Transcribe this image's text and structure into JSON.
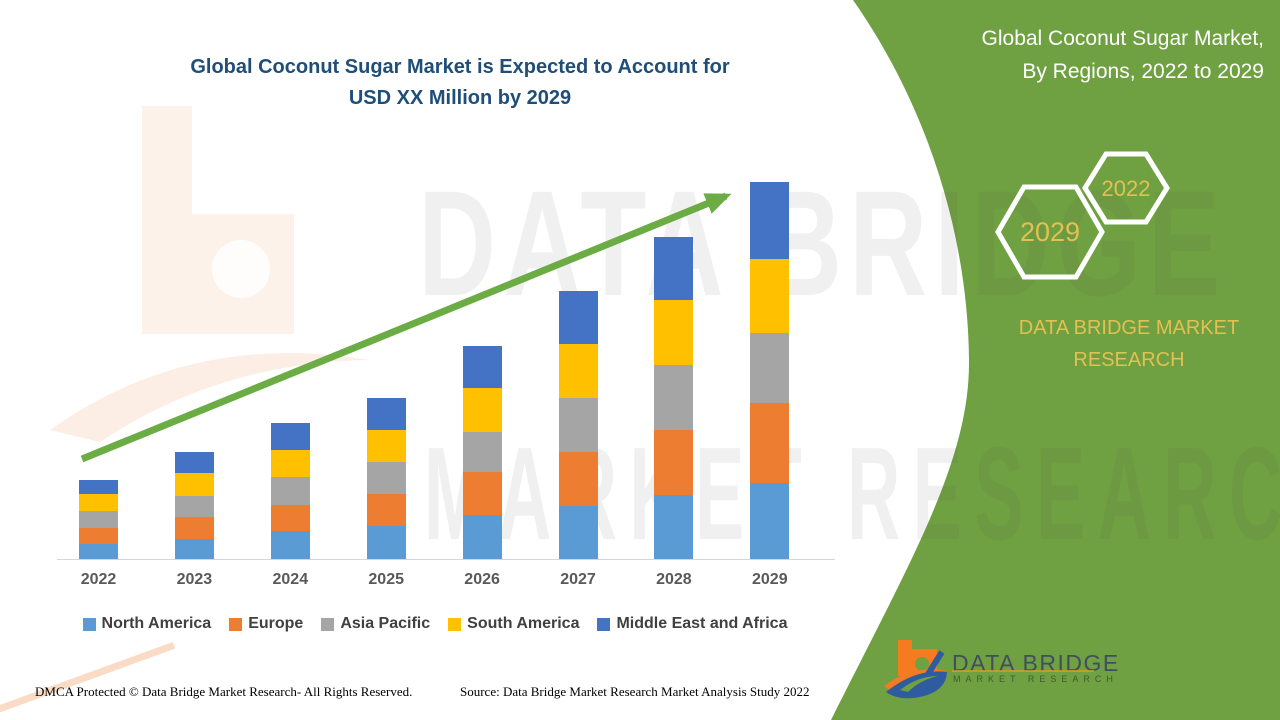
{
  "left": {
    "title_line1": "Global Coconut Sugar Market is Expected to Account for",
    "title_line2": "USD XX Million by 2029",
    "title_color": "#1F4E79",
    "footer_left": "DMCA Protected © Data Bridge Market Research- All Rights Reserved.",
    "footer_right": "Source: Data Bridge Market Research Market Analysis Study 2022"
  },
  "right_panel": {
    "background_color": "#6FA041",
    "header_line1": "Global Coconut Sugar Market,",
    "header_line2": "By Regions, 2022 to 2029",
    "hexagon_large_year": "2029",
    "hexagon_small_year": "2022",
    "hexagon_text_color": "#E3C052",
    "brand_text": "DATA BRIDGE MARKET RESEARCH",
    "brand_text_color": "#E3C052",
    "logo": {
      "name_text": "DATA BRIDGE",
      "sub_text": "MARKET RESEARCH"
    }
  },
  "watermarks": {
    "line1": "DATA BRIDGE",
    "line2": "MARKET RESEARCH"
  },
  "chart_data": {
    "type": "bar",
    "stacked": true,
    "title": "Global Coconut Sugar Market is Expected to Account for USD XX Million by 2029",
    "xlabel": "",
    "ylabel": "",
    "y_axis_visible": false,
    "grid": false,
    "legend_position": "bottom",
    "units": "relative height (values masked as USD XX Million in source)",
    "ylim": [
      0,
      380
    ],
    "categories": [
      "2022",
      "2023",
      "2024",
      "2025",
      "2026",
      "2027",
      "2028",
      "2029"
    ],
    "series": [
      {
        "name": "North America",
        "color": "#5B9BD5",
        "values": [
          15,
          20,
          28,
          33,
          44,
          53,
          64,
          76
        ]
      },
      {
        "name": "Europe",
        "color": "#ED7D31",
        "values": [
          16,
          22,
          26,
          32,
          43,
          54,
          65,
          80
        ]
      },
      {
        "name": "Asia Pacific",
        "color": "#A5A5A5",
        "values": [
          17,
          21,
          28,
          32,
          40,
          54,
          65,
          70
        ]
      },
      {
        "name": "South America",
        "color": "#FFC000",
        "values": [
          17,
          23,
          27,
          32,
          44,
          54,
          65,
          74
        ]
      },
      {
        "name": "Middle East and Africa",
        "color": "#4472C4",
        "values": [
          14,
          21,
          27,
          32,
          42,
          53,
          63,
          77
        ]
      }
    ],
    "totals": [
      79,
      107,
      136,
      161,
      213,
      268,
      322,
      377
    ],
    "trend_arrow": {
      "present": true,
      "color": "#6BAC44",
      "from_xy": [
        82,
        459
      ],
      "to_xy": [
        726,
        196
      ]
    }
  }
}
